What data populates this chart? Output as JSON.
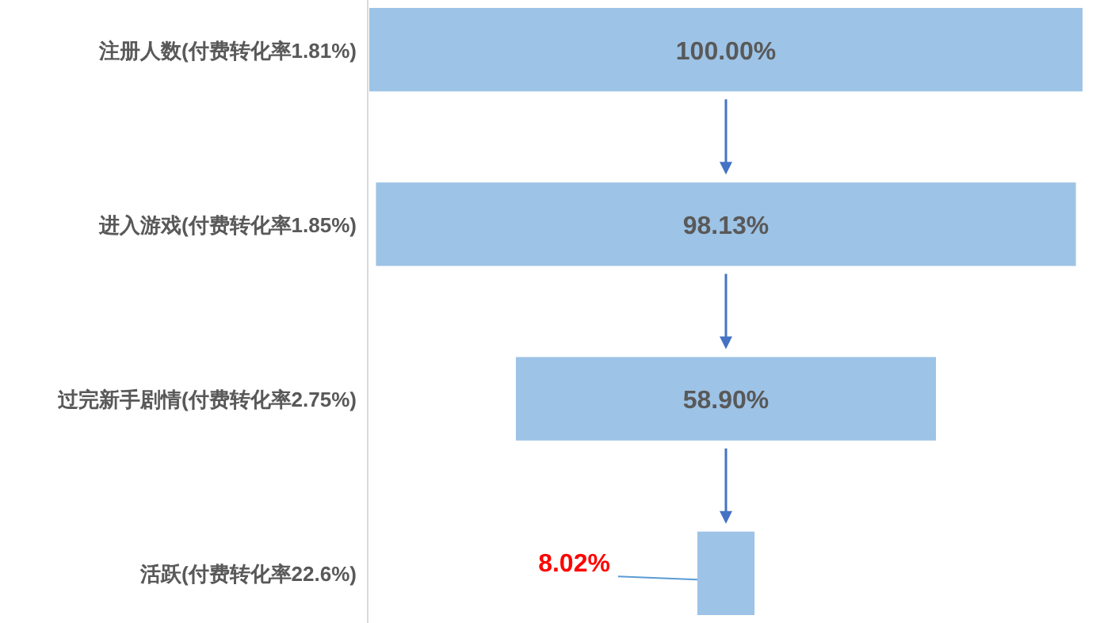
{
  "chart_data": {
    "type": "other",
    "categories": [
      "注册人数(付费转化率1.81%)",
      "进入游戏(付费转化率1.85%)",
      "过完新手剧情(付费转化率2.75%)",
      "活跃(付费转化率22.6%)"
    ],
    "values": [
      100.0,
      98.13,
      58.9,
      8.02
    ],
    "value_labels": [
      "100.00%",
      "98.13%",
      "58.90%",
      "8.02%"
    ],
    "color": "#9dc3e6"
  }
}
